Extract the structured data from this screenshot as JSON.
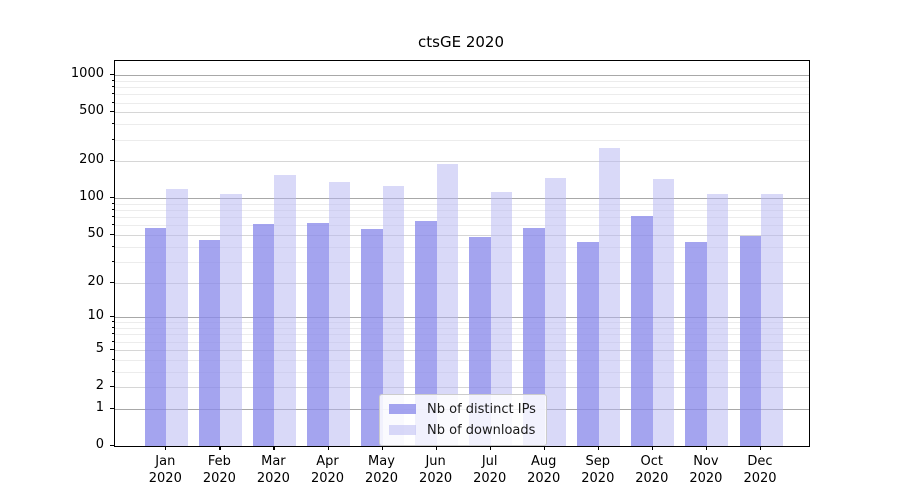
{
  "chart_data": {
    "type": "bar",
    "title": "ctsGE 2020",
    "categories": [
      "Jan 2020",
      "Feb 2020",
      "Mar 2020",
      "Apr 2020",
      "May 2020",
      "Jun 2020",
      "Jul 2020",
      "Aug 2020",
      "Sep 2020",
      "Oct 2020",
      "Nov 2020",
      "Dec 2020"
    ],
    "series": [
      {
        "name": "Nb of distinct IPs",
        "color": "rgba(138,138,234,0.78)",
        "values": [
          57,
          45,
          61,
          63,
          56,
          65,
          48,
          57,
          44,
          71,
          44,
          49
        ]
      },
      {
        "name": "Nb of downloads",
        "color": "rgba(182,182,242,0.52)",
        "values": [
          119,
          109,
          154,
          136,
          126,
          191,
          113,
          147,
          258,
          144,
          109,
          108
        ]
      }
    ],
    "xlabel": "",
    "ylabel": "",
    "yscale": "log1p",
    "ylim": [
      0,
      1300
    ],
    "yticks": [
      0,
      1,
      2,
      5,
      10,
      20,
      50,
      100,
      200,
      500,
      1000
    ],
    "minor_yticks": [
      3,
      4,
      6,
      7,
      8,
      9,
      30,
      40,
      60,
      70,
      80,
      90,
      300,
      400,
      600,
      700,
      800,
      900
    ],
    "grid": true,
    "legend_position": "lower center",
    "colors": {
      "distinct_ips": "rgba(138,138,234,0.78)",
      "downloads": "rgba(182,182,242,0.52)",
      "grid_major": "#a8a8a8",
      "grid_mid": "#d6d6d6",
      "grid_minor": "#ececec"
    }
  }
}
